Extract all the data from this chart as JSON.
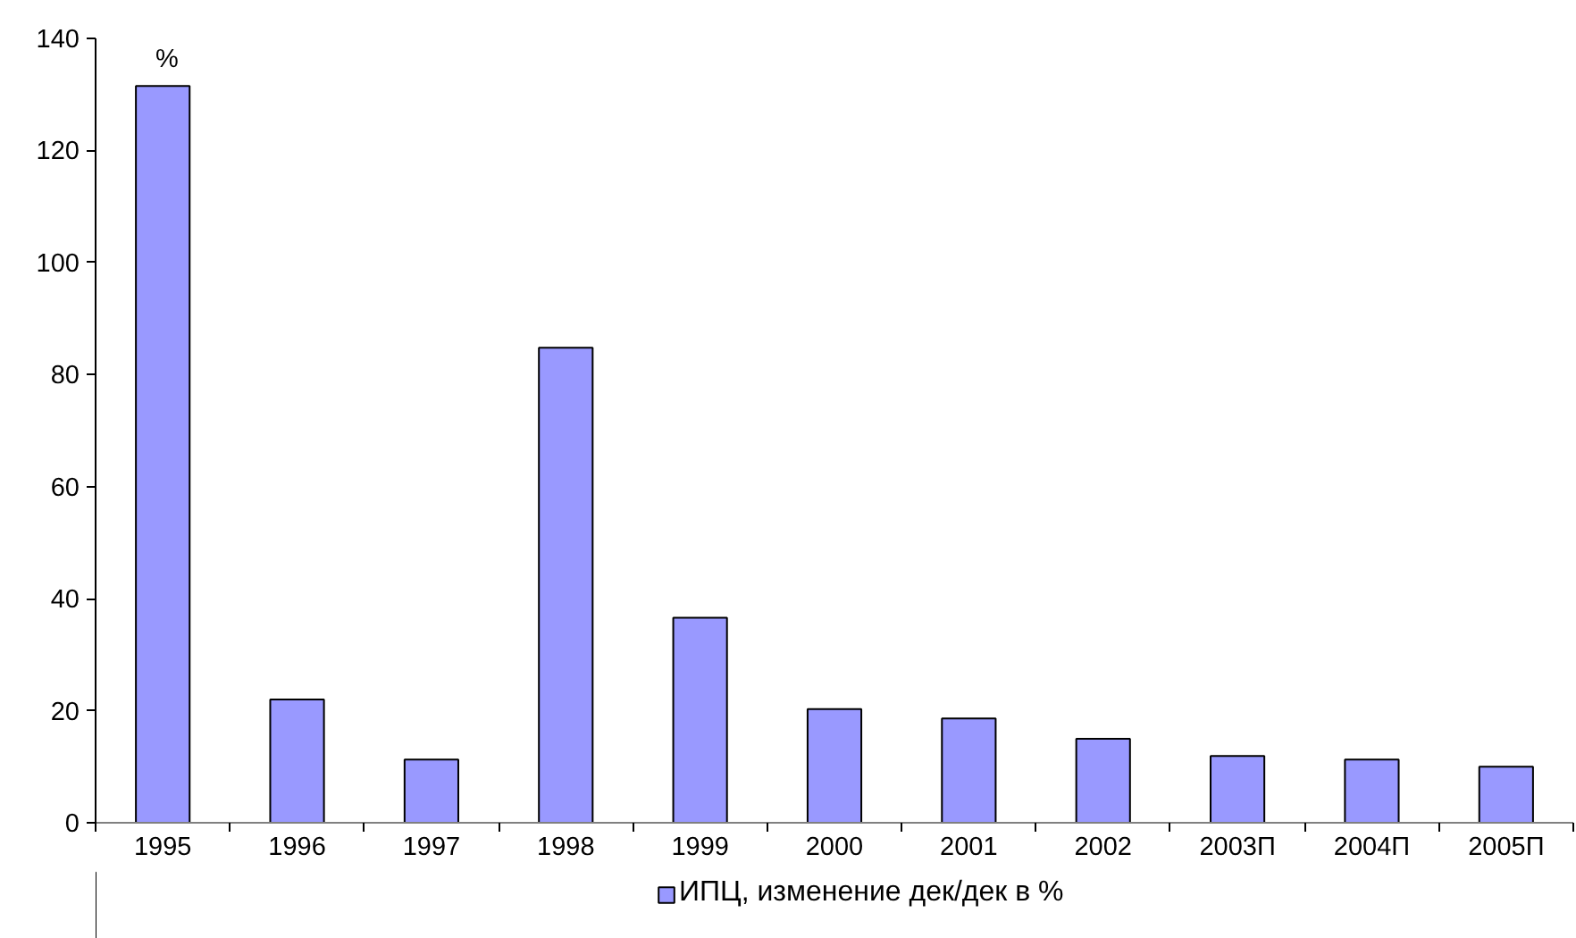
{
  "chart_data": {
    "type": "bar",
    "ylabel": "%",
    "categories": [
      "1995",
      "1996",
      "1997",
      "1998",
      "1999",
      "2000",
      "2001",
      "2002",
      "2003П",
      "2004П",
      "2005П"
    ],
    "series": [
      {
        "name": "ИПЦ, изменение дек/дек в %",
        "color": "#9999ff",
        "values": [
          131.5,
          22,
          11.3,
          84.8,
          36.6,
          20.3,
          18.6,
          15,
          11.9,
          11.3,
          10
        ]
      }
    ],
    "ylim": [
      0,
      140
    ],
    "yticks": [
      0,
      20,
      40,
      60,
      80,
      100,
      120,
      140
    ],
    "legend": "bottom"
  }
}
